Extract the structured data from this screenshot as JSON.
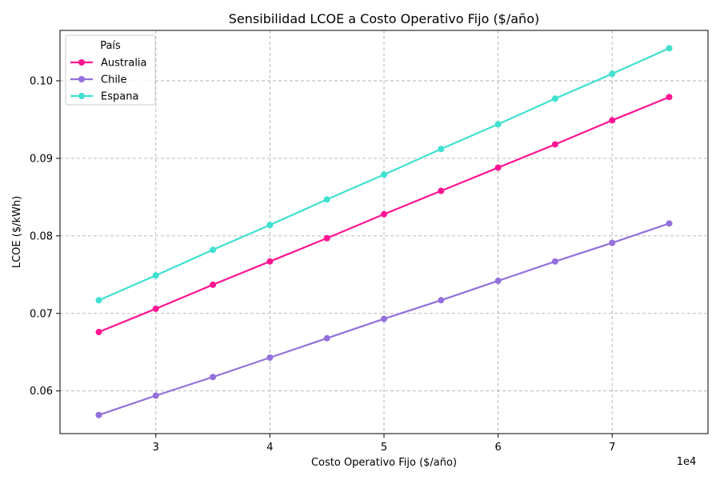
{
  "chart_data": {
    "type": "line",
    "title": "Sensibilidad LCOE a Costo Operativo Fijo ($/año)",
    "xlabel": "Costo Operativo Fijo ($/año)",
    "ylabel": "LCOE ($/kWh)",
    "x_multiplier_label": "1e4",
    "x": [
      25000,
      30000,
      35000,
      40000,
      45000,
      50000,
      55000,
      60000,
      65000,
      70000,
      75000
    ],
    "xlim": [
      21600,
      78400
    ],
    "ylim": [
      0.0545,
      0.1065
    ],
    "x_ticks": [
      30000,
      40000,
      50000,
      60000,
      70000
    ],
    "x_tick_labels": [
      "3",
      "4",
      "5",
      "6",
      "7"
    ],
    "y_ticks": [
      0.06,
      0.07,
      0.08,
      0.09,
      0.1
    ],
    "y_tick_labels": [
      "0.06",
      "0.07",
      "0.08",
      "0.09",
      "0.10"
    ],
    "grid": true,
    "legend": {
      "title": "País",
      "placement": "top-left"
    },
    "series": [
      {
        "name": "Australia",
        "color": "#ff1493",
        "values": [
          0.0676,
          0.0706,
          0.0737,
          0.0767,
          0.0797,
          0.0828,
          0.0858,
          0.0888,
          0.0918,
          0.0949,
          0.0979
        ]
      },
      {
        "name": "Chile",
        "color": "#9370db",
        "values": [
          0.0569,
          0.0594,
          0.0618,
          0.0643,
          0.0668,
          0.0693,
          0.0717,
          0.0742,
          0.0767,
          0.0791,
          0.0816
        ]
      },
      {
        "name": "Espana",
        "color": "#40e0d0",
        "values": [
          0.0717,
          0.0749,
          0.0782,
          0.0814,
          0.0847,
          0.0879,
          0.0912,
          0.0944,
          0.0977,
          0.1009,
          0.1042
        ]
      }
    ]
  }
}
